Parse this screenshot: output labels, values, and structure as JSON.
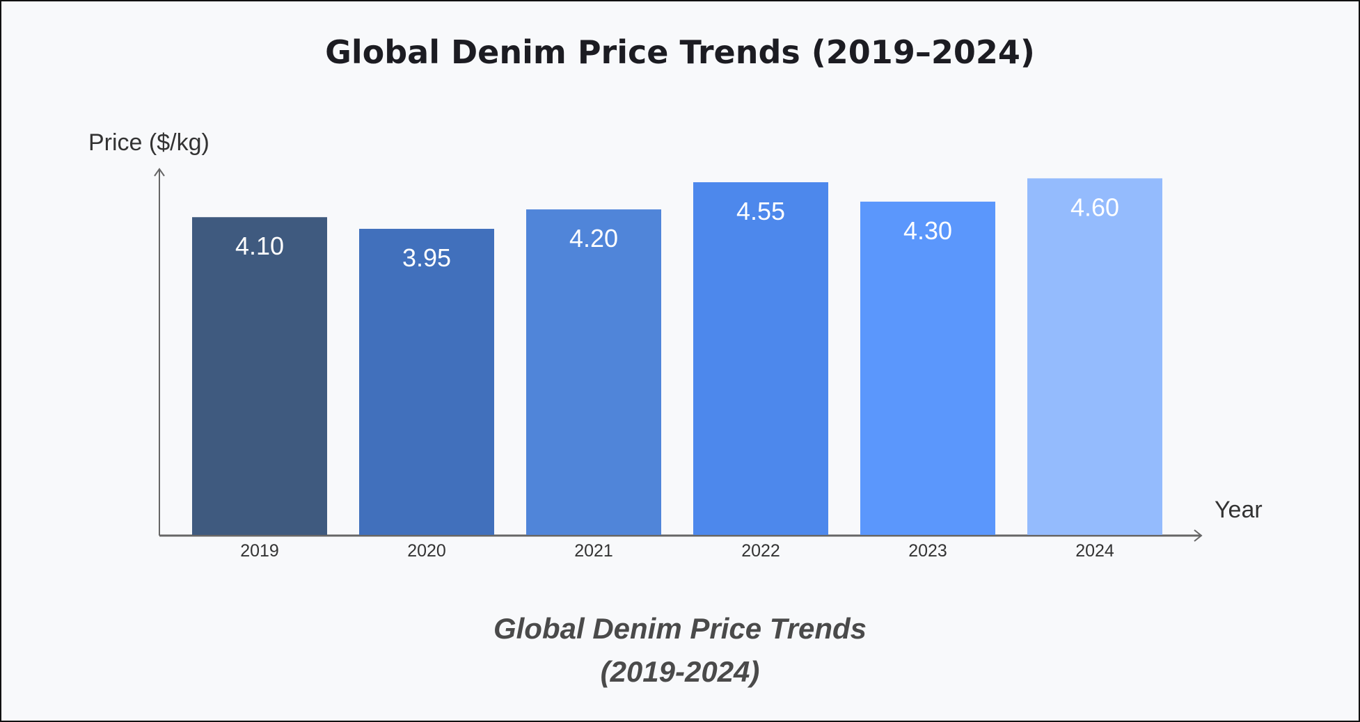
{
  "chart_data": {
    "type": "bar",
    "title": "Global Denim Price Trends (2019–2024)",
    "caption_lines": [
      "Global Denim Price Trends",
      "(2019-2024)"
    ],
    "xlabel": "Year",
    "ylabel": "Price ($/kg)",
    "categories": [
      "2019",
      "2020",
      "2021",
      "2022",
      "2023",
      "2024"
    ],
    "values": [
      4.1,
      3.95,
      4.2,
      4.55,
      4.3,
      4.6
    ],
    "value_labels": [
      "4.10",
      "3.95",
      "4.20",
      "4.55",
      "4.30",
      "4.60"
    ],
    "colors": [
      "#3f5a7f",
      "#4170bc",
      "#5085d9",
      "#4d88ec",
      "#5b97fc",
      "#94bbfd"
    ],
    "ylim": [
      0,
      4.72
    ],
    "grid": false,
    "legend": "none"
  }
}
